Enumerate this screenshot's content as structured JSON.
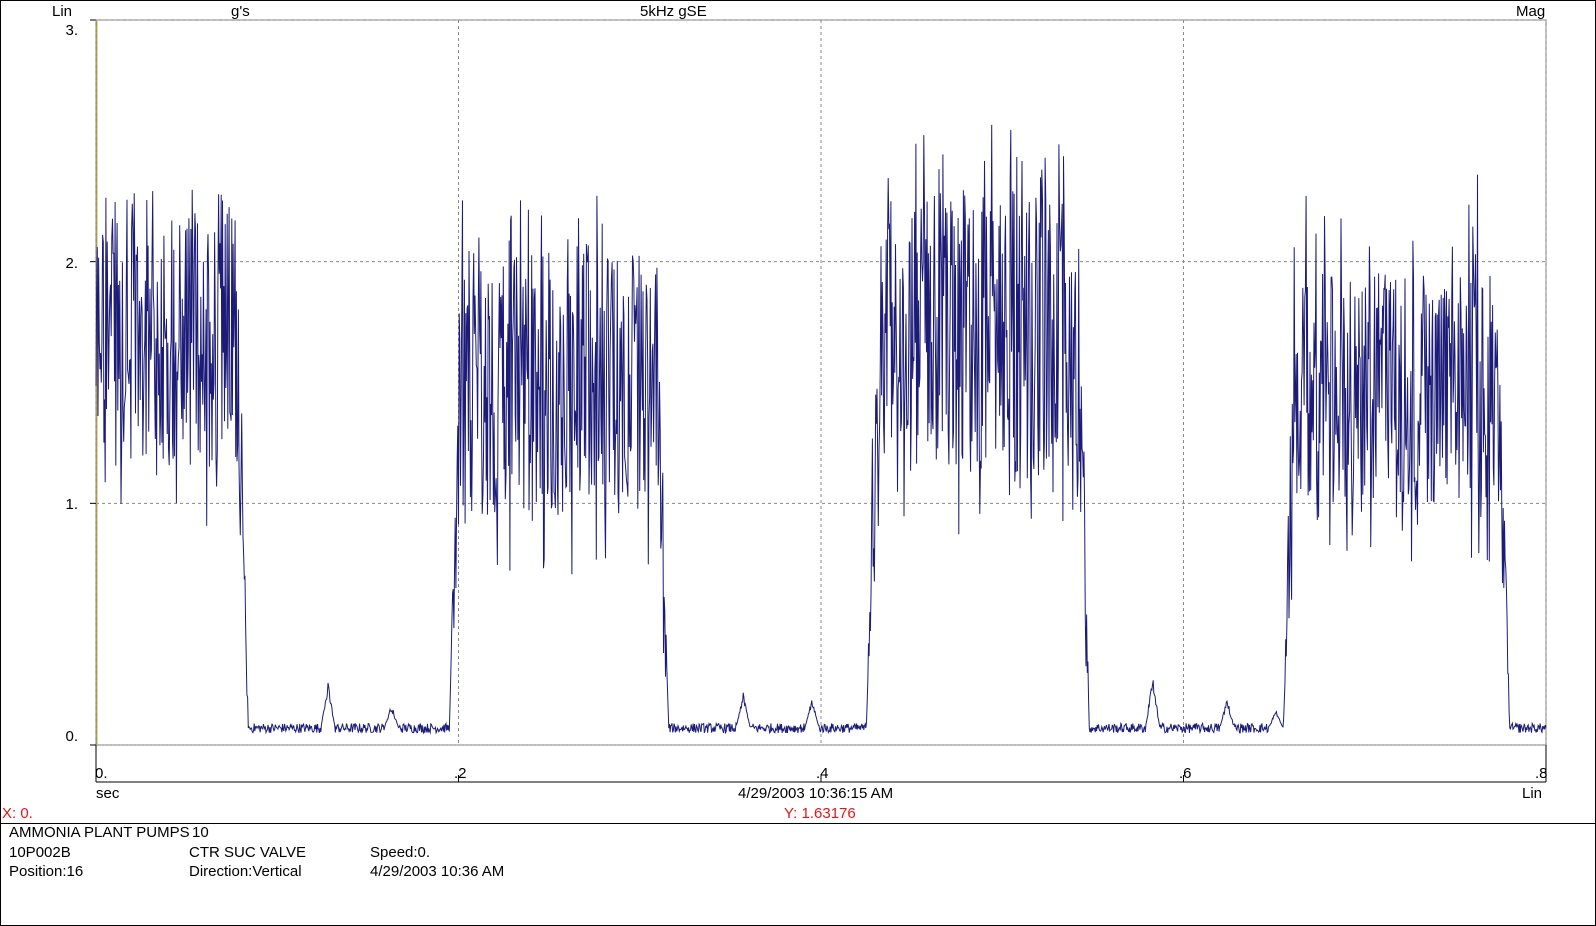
{
  "header": {
    "left": "Lin",
    "units": "g's",
    "title": "5kHz gSE",
    "right": "Mag"
  },
  "footer_axis": {
    "xunit": "sec",
    "timestamp": "4/29/2003 10:36:15 AM",
    "xscale": "Lin"
  },
  "cursor": {
    "x_readout": "X: 0.",
    "y_readout": "Y: 1.63176",
    "color": "#e01818"
  },
  "info": {
    "plant": "AMMONIA PLANT PUMPS",
    "plant_suffix": "10",
    "machine": "10P002B",
    "location": "CTR SUC VALVE",
    "speed": "Speed:0.",
    "position": "Position:16",
    "direction": "Direction:Vertical",
    "date": "4/29/2003 10:36 AM"
  },
  "chart_data": {
    "type": "line",
    "title": "5kHz gSE",
    "xlabel": "sec",
    "ylabel": "g's",
    "xlim": [
      0,
      0.8
    ],
    "ylim": [
      0,
      3
    ],
    "xticks": [
      "0.",
      ".2",
      ".4",
      ".6",
      ".8"
    ],
    "yticks": [
      "0.",
      "1.",
      "2.",
      "3."
    ],
    "grid": true,
    "line_color": "#1c1c78",
    "series": [
      {
        "bursts": [
          {
            "start": 0.0,
            "end": 0.078,
            "low": 1.15,
            "high": 2.25,
            "peak": 2.3
          },
          {
            "start": 0.201,
            "end": 0.31,
            "low": 0.95,
            "high": 2.05,
            "peak": 2.33
          },
          {
            "start": 0.431,
            "end": 0.542,
            "low": 1.1,
            "high": 2.3,
            "peak": 2.58
          },
          {
            "start": 0.661,
            "end": 0.774,
            "low": 1.0,
            "high": 1.95,
            "peak": 2.39
          }
        ],
        "baseline": 0.07,
        "small_peaks": [
          {
            "x": 0.128,
            "y": 0.26
          },
          {
            "x": 0.163,
            "y": 0.17
          },
          {
            "x": 0.357,
            "y": 0.22
          },
          {
            "x": 0.395,
            "y": 0.19
          },
          {
            "x": 0.583,
            "y": 0.29
          },
          {
            "x": 0.624,
            "y": 0.2
          },
          {
            "x": 0.651,
            "y": 0.15
          }
        ],
        "x_range": [
          0,
          0.8
        ]
      }
    ]
  }
}
